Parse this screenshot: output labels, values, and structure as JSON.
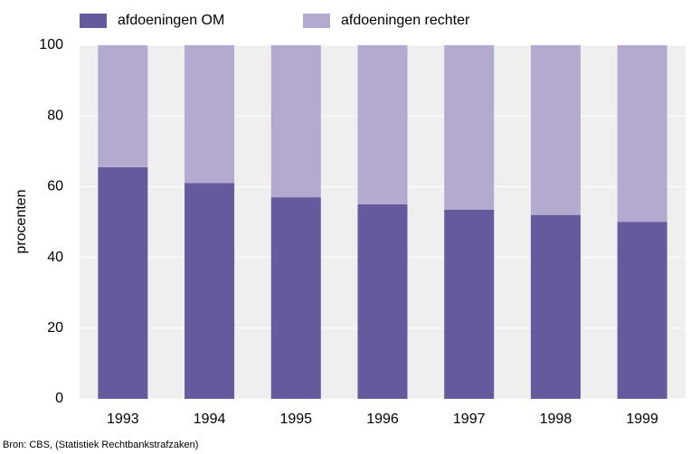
{
  "chart_data": {
    "type": "stacked_bar",
    "categories": [
      "1993",
      "1994",
      "1995",
      "1996",
      "1997",
      "1998",
      "1999"
    ],
    "series": [
      {
        "name": "afdoeningen OM",
        "color": "#655a9e",
        "values": [
          65.5,
          61,
          57,
          55,
          53.5,
          52,
          50
        ]
      },
      {
        "name": "afdoeningen rechter",
        "color": "#b4aad0",
        "values": [
          34.5,
          39,
          43,
          45,
          46.5,
          48,
          50
        ]
      }
    ],
    "ylabel": "procenten",
    "ylim": [
      0,
      100
    ],
    "yticks": [
      0,
      20,
      40,
      60,
      80,
      100
    ],
    "grid": true,
    "source": "Bron: CBS, (Statistiek Rechtbankstrafzaken)"
  }
}
